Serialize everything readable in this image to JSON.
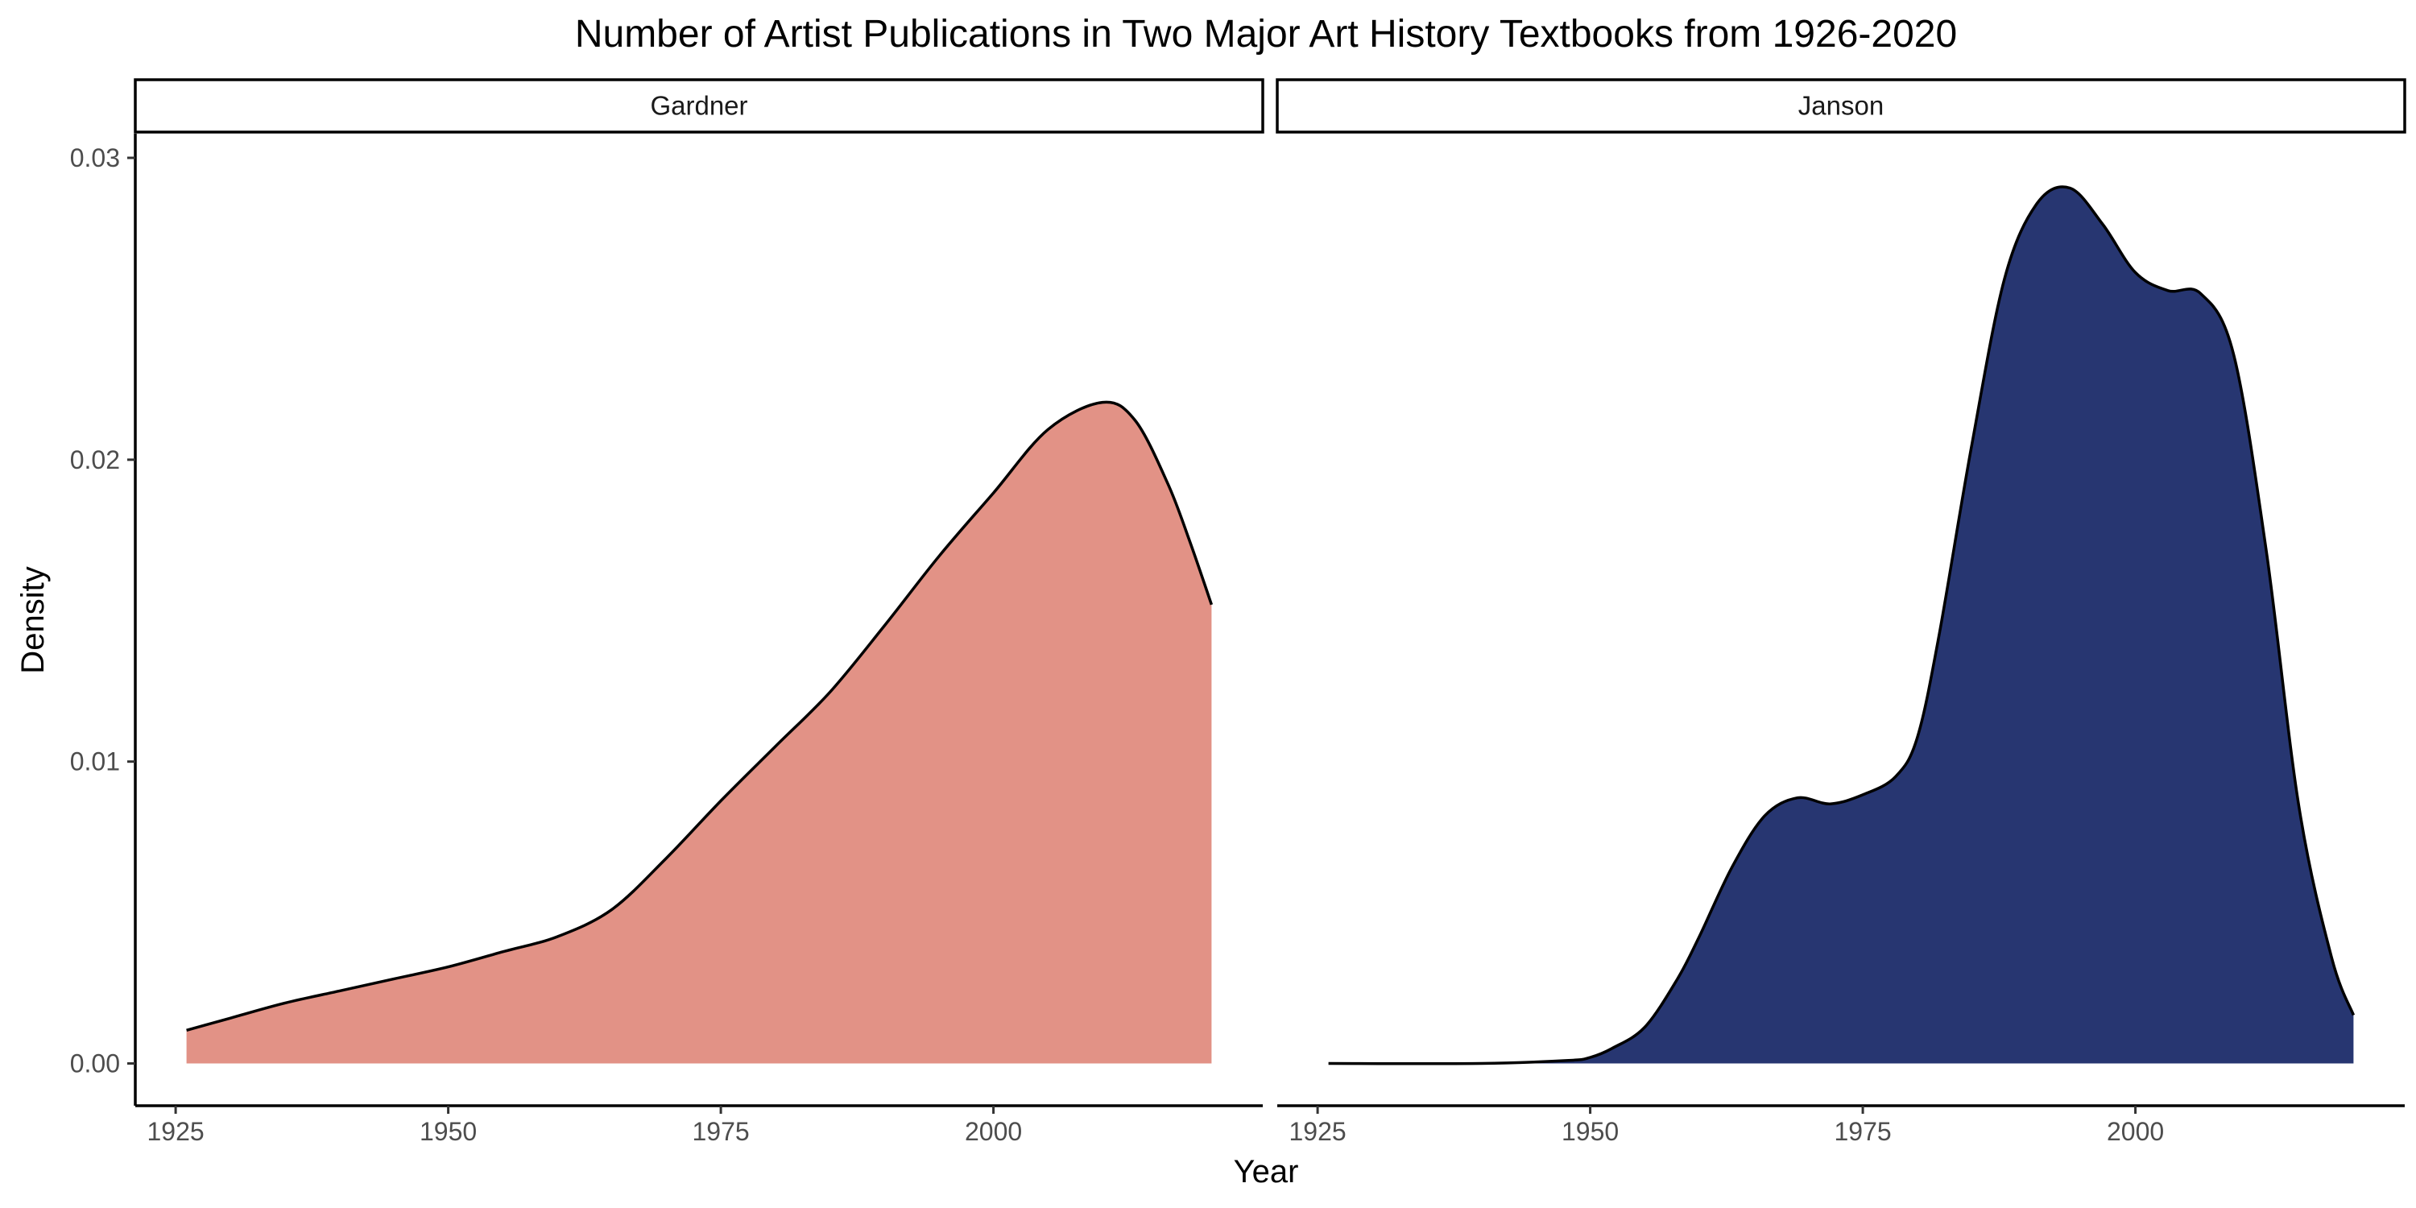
{
  "chart_data": {
    "type": "area",
    "title": "Number of Artist Publications in Two Major Art History Textbooks from 1926-2020",
    "xlabel": "Year",
    "ylabel": "Density",
    "xlim": [
      1926,
      2020
    ],
    "ylim": [
      0,
      0.03
    ],
    "xticks": [
      1925,
      1950,
      1975,
      2000
    ],
    "xtick_labels": [
      "1925",
      "1950",
      "1975",
      "2000"
    ],
    "yticks": [
      0,
      0.01,
      0.02,
      0.03
    ],
    "ytick_labels": [
      "0.00",
      "0.01",
      "0.02",
      "0.03"
    ],
    "grid": false,
    "legend": "none",
    "panels": [
      {
        "name": "Gardner",
        "color": "#E29286",
        "x": [
          1926,
          1930,
          1935,
          1940,
          1945,
          1950,
          1955,
          1960,
          1965,
          1970,
          1975,
          1980,
          1985,
          1990,
          1995,
          2000,
          2005,
          2010,
          2013,
          2016,
          2018,
          2020
        ],
        "y": [
          0.0011,
          0.0015,
          0.002,
          0.0024,
          0.0028,
          0.0032,
          0.0037,
          0.0042,
          0.0051,
          0.0068,
          0.0087,
          0.0105,
          0.0123,
          0.0145,
          0.0168,
          0.0189,
          0.021,
          0.0219,
          0.0213,
          0.0192,
          0.0173,
          0.0152
        ]
      },
      {
        "name": "Janson",
        "color": "#273671",
        "x": [
          1926,
          1940,
          1948,
          1950,
          1952,
          1955,
          1958,
          1960,
          1963,
          1966,
          1969,
          1972,
          1975,
          1978,
          1980,
          1982,
          1985,
          1988,
          1991,
          1994,
          1997,
          2000,
          2003,
          2006,
          2009,
          2012,
          2015,
          2018,
          2020
        ],
        "y": [
          0.0,
          0.0,
          0.0001,
          0.0002,
          0.0005,
          0.0012,
          0.0028,
          0.0042,
          0.0065,
          0.0082,
          0.0088,
          0.0086,
          0.0089,
          0.0095,
          0.0108,
          0.0142,
          0.0205,
          0.026,
          0.0285,
          0.029,
          0.0278,
          0.0262,
          0.0256,
          0.0255,
          0.0235,
          0.017,
          0.0085,
          0.0035,
          0.0016
        ]
      }
    ]
  }
}
